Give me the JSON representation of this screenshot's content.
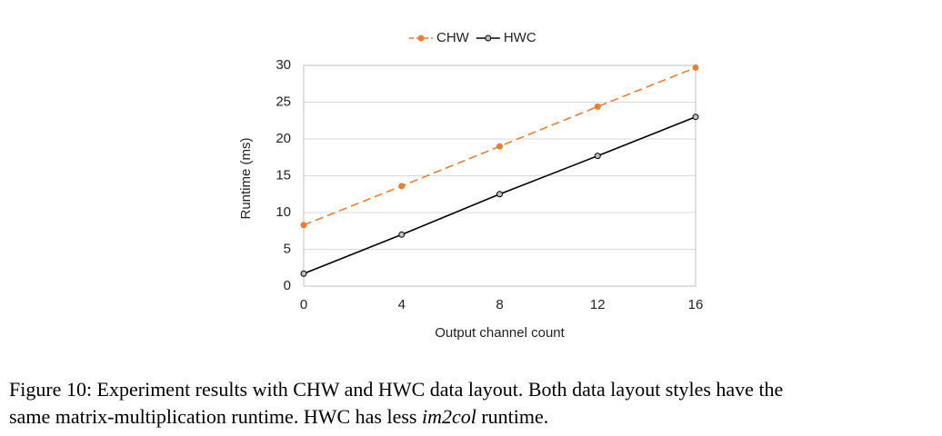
{
  "chart_data": {
    "type": "line",
    "x_label": "Output channel count",
    "y_label": "Runtime (ms)",
    "x": [
      0,
      4,
      8,
      12,
      16
    ],
    "series": [
      {
        "name": "CHW",
        "color": "#ed7d31",
        "dashed": true,
        "marker_fill": "#ed7d31",
        "values": [
          8.3,
          13.6,
          19.0,
          24.4,
          29.7
        ]
      },
      {
        "name": "HWC",
        "color": "#000000",
        "dashed": false,
        "marker_fill": "#bfbfbf",
        "values": [
          1.7,
          7.0,
          12.5,
          17.7,
          23.0
        ]
      }
    ],
    "xlim": [
      0,
      16
    ],
    "xticks": [
      0,
      4,
      8,
      12,
      16
    ],
    "ylim": [
      0,
      30
    ],
    "yticks": [
      0,
      5,
      10,
      15,
      20,
      25,
      30
    ],
    "grid": true,
    "legend": "top"
  },
  "caption": {
    "line1": "Figure 10: Experiment results with CHW and HWC data layout. Both data layout styles have the",
    "line2": [
      "same matrix-multiplication runtime. HWC has less ",
      "im2col",
      " runtime."
    ]
  }
}
